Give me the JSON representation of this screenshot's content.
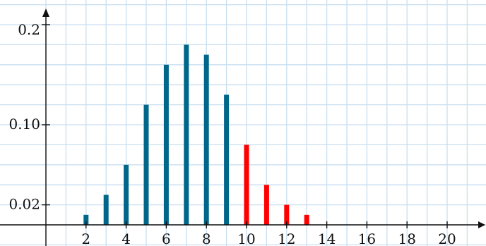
{
  "chart_data": {
    "type": "bar",
    "x": [
      2,
      3,
      4,
      5,
      6,
      7,
      8,
      9,
      10,
      11,
      12,
      13
    ],
    "series": [
      {
        "values": [
          0.01,
          0.03,
          0.06,
          0.12,
          0.16,
          0.18,
          0.17,
          0.13,
          0.08,
          0.04,
          0.02,
          0.01
        ],
        "colors": [
          "#00668a",
          "#00668a",
          "#00668a",
          "#00668a",
          "#00668a",
          "#00668a",
          "#00668a",
          "#00668a",
          "#ff0000",
          "#ff0000",
          "#ff0000",
          "#ff0000"
        ]
      }
    ],
    "x_ticks": [
      2,
      4,
      6,
      8,
      10,
      12,
      14,
      16,
      18,
      20
    ],
    "x_tick_labels": [
      "2",
      "4",
      "6",
      "8",
      "10",
      "12",
      "14",
      "16",
      "18",
      "20"
    ],
    "y_ticks": [
      0.02,
      0.1,
      0.2
    ],
    "y_tick_labels": [
      "0.02",
      "0.10",
      "0.2"
    ],
    "xlim": [
      0,
      22
    ],
    "ylim": [
      0,
      0.2
    ],
    "grid": true,
    "colors": {
      "bar_primary": "#00668a",
      "bar_highlight": "#ff0000",
      "grid": "#c9dff0",
      "axis": "#111111"
    },
    "title": "",
    "xlabel": "",
    "ylabel": ""
  }
}
